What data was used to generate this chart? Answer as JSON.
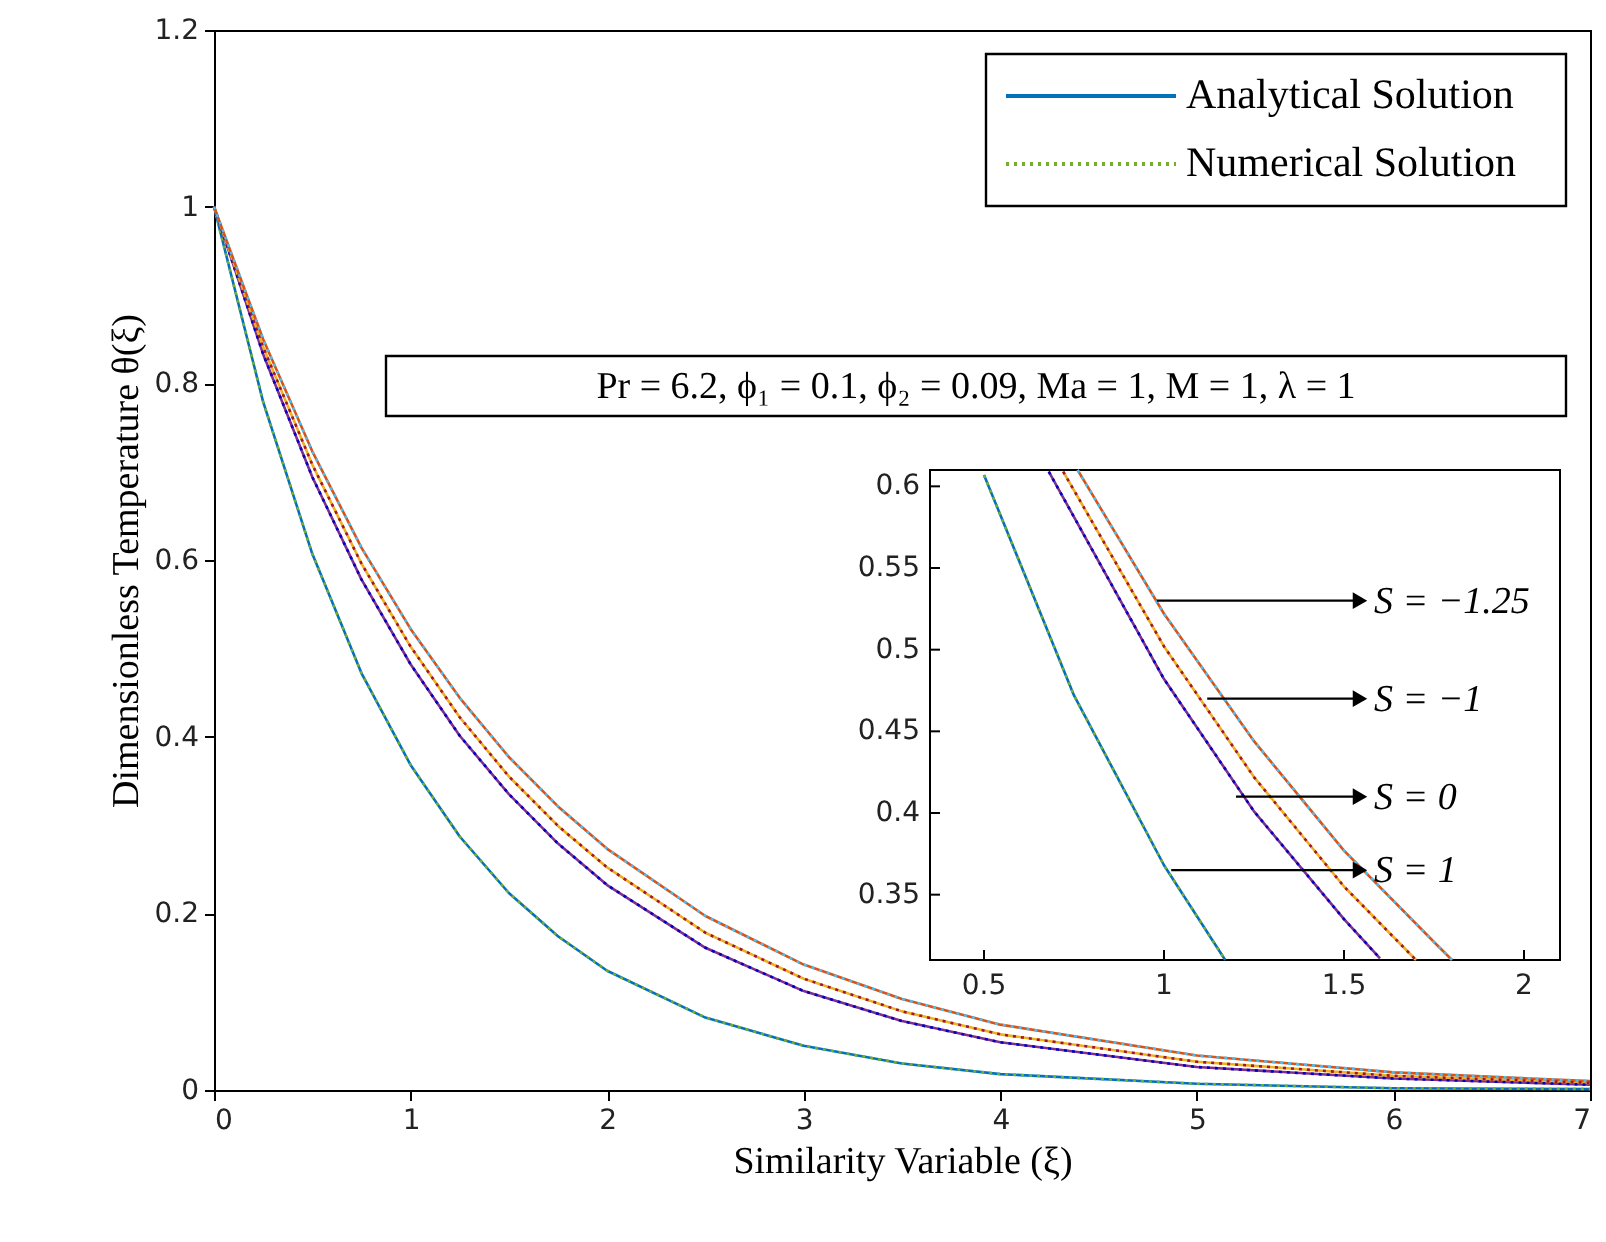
{
  "chart_data": [
    {
      "type": "line",
      "xlabel": "Similarity Variable (ξ)",
      "ylabel": "Dimensionless Temperature θ(ξ)",
      "x": [
        0,
        0.25,
        0.5,
        0.75,
        1,
        1.25,
        1.5,
        1.75,
        2,
        2.5,
        3,
        3.5,
        4,
        5,
        6,
        7
      ],
      "series": [
        {
          "name": "Analytical Solution",
          "color": "#0072bd",
          "line_style": "solid",
          "values": [
            1,
            0.779,
            0.607,
            0.472,
            0.368,
            0.287,
            0.223,
            0.174,
            0.135,
            0.082,
            0.05,
            0.03,
            0.018,
            0.007,
            0.002,
            0.001
          ]
        },
        {
          "color": "#7e2f8e",
          "line_style": "solid",
          "values": [
            1,
            0.833,
            0.694,
            0.578,
            0.482,
            0.401,
            0.335,
            0.279,
            0.232,
            0.161,
            0.112,
            0.078,
            0.054,
            0.026,
            0.013,
            0.006
          ]
        },
        {
          "color": "#edb120",
          "line_style": "solid",
          "values": [
            1,
            0.841,
            0.708,
            0.596,
            0.502,
            0.422,
            0.355,
            0.299,
            0.252,
            0.178,
            0.126,
            0.089,
            0.063,
            0.032,
            0.016,
            0.008
          ]
        },
        {
          "color": "#d95319",
          "line_style": "solid",
          "values": [
            1,
            0.85,
            0.723,
            0.614,
            0.522,
            0.444,
            0.377,
            0.321,
            0.273,
            0.197,
            0.142,
            0.103,
            0.074,
            0.039,
            0.02,
            0.01
          ]
        },
        {
          "name": "Numerical Solution",
          "color": "#77ac30",
          "line_style": "dotted",
          "values": [
            1,
            0.779,
            0.607,
            0.472,
            0.368,
            0.287,
            0.223,
            0.174,
            0.135,
            0.082,
            0.05,
            0.03,
            0.018,
            0.007,
            0.002,
            0.001
          ]
        },
        {
          "color": "#0000c8",
          "line_style": "dotted",
          "values": [
            1,
            0.833,
            0.694,
            0.578,
            0.482,
            0.401,
            0.335,
            0.279,
            0.232,
            0.161,
            0.112,
            0.078,
            0.054,
            0.026,
            0.013,
            0.006
          ]
        },
        {
          "color": "#a2142f",
          "line_style": "dotted",
          "values": [
            1,
            0.841,
            0.708,
            0.596,
            0.502,
            0.422,
            0.355,
            0.299,
            0.252,
            0.178,
            0.126,
            0.089,
            0.063,
            0.032,
            0.016,
            0.008
          ]
        },
        {
          "color": "#4dbeee",
          "line_style": "dotted",
          "values": [
            1,
            0.85,
            0.723,
            0.614,
            0.522,
            0.444,
            0.377,
            0.321,
            0.273,
            0.197,
            0.142,
            0.103,
            0.074,
            0.039,
            0.02,
            0.01
          ]
        }
      ],
      "xlim": [
        0,
        7
      ],
      "xticks": [
        0,
        1,
        2,
        3,
        4,
        5,
        6,
        7
      ],
      "ylim": [
        0,
        1.2
      ],
      "yticks": [
        0,
        0.2,
        0.4,
        0.6,
        0.8,
        1,
        1.2
      ],
      "grid": false,
      "legend": "top right",
      "annotations": [
        "Pr = 6.2, ϕ₁ = 0.1, ϕ₂ = 0.09, Ma = 1, M = 1, λ = 1"
      ]
    },
    {
      "type": "line",
      "series": [
        {
          "color": "#0072bd",
          "line_style": "solid",
          "x": [
            0.5,
            0.75,
            1,
            1.17
          ],
          "values": [
            0.607,
            0.472,
            0.368,
            0.31
          ]
        },
        {
          "color": "#7e2f8e",
          "line_style": "solid",
          "x": [
            0.68,
            1,
            1.25,
            1.5,
            1.6
          ],
          "values": [
            0.609,
            0.482,
            0.401,
            0.335,
            0.311
          ]
        },
        {
          "color": "#edb120",
          "line_style": "solid",
          "x": [
            0.72,
            1,
            1.25,
            1.5,
            1.7
          ],
          "values": [
            0.609,
            0.502,
            0.422,
            0.355,
            0.31
          ]
        },
        {
          "color": "#d95319",
          "line_style": "solid",
          "x": [
            0.76,
            1,
            1.25,
            1.5,
            1.75,
            1.8
          ],
          "values": [
            0.61,
            0.522,
            0.444,
            0.377,
            0.321,
            0.31
          ]
        },
        {
          "color": "#77ac30",
          "line_style": "dotted",
          "x": [
            0.5,
            0.75,
            1,
            1.17
          ],
          "values": [
            0.607,
            0.472,
            0.368,
            0.31
          ]
        },
        {
          "color": "#0000c8",
          "line_style": "dotted",
          "x": [
            0.68,
            1,
            1.25,
            1.5,
            1.6
          ],
          "values": [
            0.609,
            0.482,
            0.401,
            0.335,
            0.311
          ]
        },
        {
          "color": "#a2142f",
          "line_style": "dotted",
          "x": [
            0.72,
            1,
            1.25,
            1.5,
            1.7
          ],
          "values": [
            0.609,
            0.502,
            0.422,
            0.355,
            0.31
          ]
        },
        {
          "color": "#4dbeee",
          "line_style": "dotted",
          "x": [
            0.76,
            1,
            1.25,
            1.5,
            1.75,
            1.8
          ],
          "values": [
            0.61,
            0.522,
            0.444,
            0.377,
            0.321,
            0.31
          ]
        }
      ],
      "xlim": [
        0.35,
        2.1
      ],
      "xticks": [
        0.5,
        1,
        1.5,
        2
      ],
      "ylim": [
        0.31,
        0.61
      ],
      "yticks": [
        0.35,
        0.4,
        0.45,
        0.5,
        0.55,
        0.6
      ],
      "annotations": [
        {
          "text": "S = −1.25",
          "x": 0.98,
          "y": 0.53
        },
        {
          "text": "S = −1",
          "x": 1.12,
          "y": 0.47
        },
        {
          "text": "S = 0",
          "x": 1.2,
          "y": 0.41
        },
        {
          "text": "S = 1",
          "x": 1.02,
          "y": 0.365
        }
      ]
    }
  ]
}
